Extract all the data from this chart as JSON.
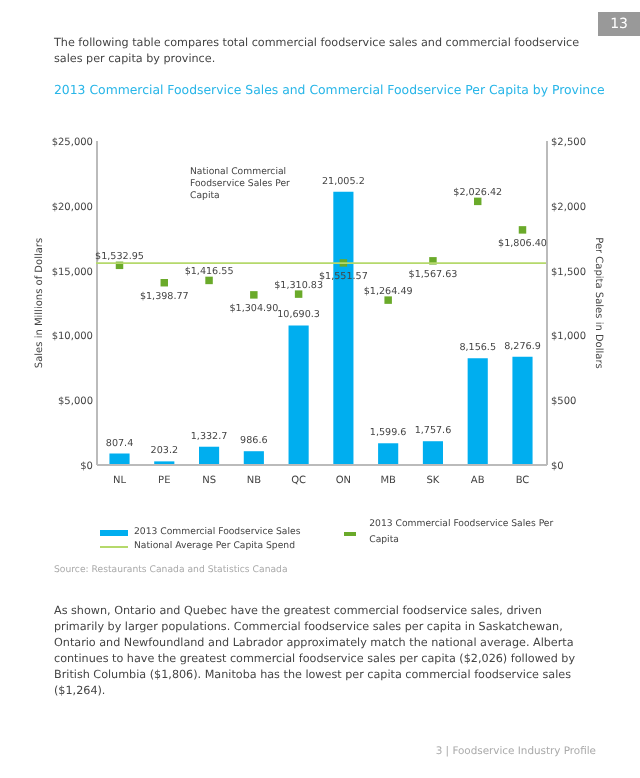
{
  "chart_data": {
    "type": "bar",
    "title": "2013 Commercial Foodservice Sales and Commercial Foodservice Per Capita by Province",
    "ylabel": "Sales in Millions of Dollars",
    "y2label": "Per Capita Sales in Dollars",
    "categories": [
      "NL",
      "PE",
      "NS",
      "NB",
      "QC",
      "ON",
      "MB",
      "SK",
      "AB",
      "BC"
    ],
    "series": [
      {
        "name": "2013 Commercial Foodservice Sales",
        "type": "bar",
        "color": "#00aeef",
        "values": [
          807.4,
          203.2,
          1332.7,
          986.6,
          10690.3,
          21005.2,
          1599.6,
          1757.6,
          8156.5,
          8276.9
        ],
        "value_labels": [
          "807.4",
          "203.2",
          "1,332.7",
          "986.6",
          "10,690.3",
          "21,005.2",
          "1,599.6",
          "1,757.6",
          "8,156.5",
          "8,276.9"
        ]
      },
      {
        "name": "2013 Commercial Foodservice Sales Per Capita",
        "type": "scatter",
        "axis": "y2",
        "marker": "square",
        "color": "#6aaa2a",
        "values": [
          1532.95,
          1398.77,
          1416.55,
          1304.9,
          1310.83,
          1551.57,
          1264.49,
          1567.63,
          2026.42,
          1806.4
        ],
        "value_labels": [
          "$1,532.95",
          "$1,398.77",
          "$1,416.55",
          "$1,304.90",
          "$1,310.83",
          "$1,551.57",
          "$1,264.49",
          "$1,567.63",
          "$2,026.42",
          "$1,806.40"
        ]
      }
    ],
    "ylim": [
      0,
      25000
    ],
    "yticks": [
      {
        "value": 0,
        "label": "$0"
      },
      {
        "value": 5000,
        "label": "$5,000"
      },
      {
        "value": 10000,
        "label": "$10,000"
      },
      {
        "value": 15000,
        "label": "$15,000"
      },
      {
        "value": 20000,
        "label": "$20,000"
      },
      {
        "value": 25000,
        "label": "$25,000"
      }
    ],
    "y2lim": [
      0,
      2500
    ],
    "y2ticks": [
      {
        "value": 0,
        "label": "$0"
      },
      {
        "value": 500,
        "label": "$500"
      },
      {
        "value": 1000,
        "label": "$1,000"
      },
      {
        "value": 1500,
        "label": "$1,500"
      },
      {
        "value": 2000,
        "label": "$2,000"
      },
      {
        "value": 2500,
        "label": "$2,500"
      }
    ],
    "ref_lines": [
      {
        "axis": "y2",
        "value": 1550,
        "label": "National Average Per Capita Spend",
        "color": "#b5d96b"
      }
    ],
    "legend": "bottom",
    "grid": false,
    "annotations": [
      "The following table compares total commercial foodservice sales and commercial foodservice sales per capita by province.",
      "National Commercial Foodservice Sales Per Capita",
      "Source: Restaurants Canada and Statistics Canada",
      "As shown, Ontario and Quebec have the greatest commercial foodservice sales, driven primarily by larger populations.  Commercial foodservice sales per capita in Saskatchewan, Ontario and Newfoundland and Labrador approximately match the national average.  Alberta continues to have the greatest commercial foodservice sales per capita ($2,026) followed by British Columbia ($1,806). Manitoba has the lowest per capita commercial foodservice sales ($1,264).",
      "13",
      "3 | Foodservice Industry Profile"
    ]
  }
}
